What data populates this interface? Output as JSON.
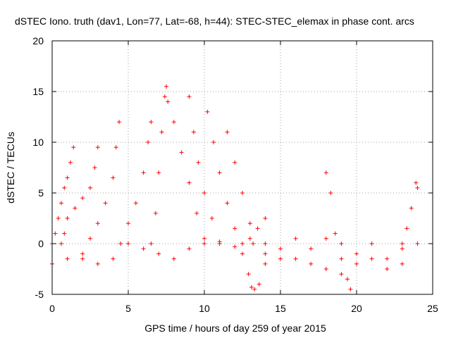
{
  "chart_data": {
    "type": "scatter",
    "title": "dSTEC Iono. truth (dav1, Lon=77, Lat=-68, h=44): STEC-STEC_elemax in phase cont. arcs",
    "xlabel": "GPS time / hours of day 259 of year 2015",
    "ylabel": "dSTEC  / TECUs",
    "xlim": [
      0,
      25
    ],
    "ylim": [
      -5,
      20
    ],
    "xticks": [
      0,
      5,
      10,
      15,
      20,
      25
    ],
    "yticks": [
      -5,
      0,
      5,
      10,
      15,
      20
    ],
    "grid": true,
    "marker": "+",
    "color": "#ff0000",
    "series": [
      {
        "x": [
          0.0,
          0.2,
          0.4,
          0.6,
          0.8,
          1.0,
          1.2,
          1.4
        ],
        "y": [
          0.0,
          1.0,
          2.5,
          4.0,
          5.5,
          6.5,
          8.0,
          9.5
        ]
      },
      {
        "x": [
          0.6,
          0.8,
          1.0,
          1.5,
          2.0,
          2.5,
          2.8,
          3.0
        ],
        "y": [
          0.0,
          1.0,
          2.5,
          3.5,
          4.5,
          5.5,
          7.5,
          9.5
        ]
      },
      {
        "x": [
          2.0,
          2.5,
          3.0,
          3.5,
          4.0,
          4.2,
          4.4
        ],
        "y": [
          -1.0,
          0.5,
          2.0,
          4.0,
          6.5,
          9.5,
          12.0
        ]
      },
      {
        "x": [
          4.5,
          5.0,
          5.5,
          6.0,
          6.3,
          6.5
        ],
        "y": [
          0.0,
          2.0,
          4.0,
          7.0,
          10.0,
          12.0
        ]
      },
      {
        "x": [
          6.5,
          6.8,
          7.0,
          7.2,
          7.4,
          7.5,
          7.6,
          8.0,
          8.5,
          9.0,
          9.5,
          10.0
        ],
        "y": [
          0.0,
          3.0,
          7.0,
          11.0,
          14.5,
          15.5,
          14.0,
          12.0,
          9.0,
          6.0,
          3.0,
          0.5
        ]
      },
      {
        "x": [
          9.0,
          9.3,
          9.6,
          10.0,
          10.5,
          11.0
        ],
        "y": [
          14.5,
          11.0,
          8.0,
          5.0,
          2.5,
          0.0
        ]
      },
      {
        "x": [
          10.2,
          10.6,
          11.0,
          11.5,
          12.0,
          12.5
        ],
        "y": [
          13.0,
          10.0,
          7.0,
          4.0,
          1.5,
          0.0
        ]
      },
      {
        "x": [
          11.5,
          12.0,
          12.5,
          13.0,
          13.2,
          13.5,
          14.0
        ],
        "y": [
          11.0,
          8.0,
          5.0,
          2.0,
          0.0,
          1.5,
          2.5
        ]
      },
      {
        "x": [
          12.5,
          12.9,
          13.1,
          13.3,
          13.6,
          14.0
        ],
        "y": [
          -1.0,
          -3.0,
          -4.3,
          -4.5,
          -4.0,
          -2.0
        ]
      },
      {
        "x": [
          0.0,
          1.0,
          2.0,
          3.0,
          4.0,
          5.0,
          6.0,
          7.0,
          8.0,
          9.0,
          10.0,
          11.0,
          12.0,
          13.0,
          14.0,
          15.0,
          16.0,
          17.0,
          18.0,
          19.0,
          20.0,
          21.0,
          22.0,
          23.0,
          24.0
        ],
        "y": [
          -2.0,
          -1.5,
          -1.5,
          -2.0,
          -1.5,
          0.0,
          -0.5,
          -1.0,
          -1.5,
          -0.5,
          0.0,
          0.2,
          -0.3,
          0.5,
          0.0,
          -0.5,
          0.5,
          -0.5,
          0.5,
          0.0,
          -1.0,
          0.0,
          -1.5,
          -0.5,
          0.0
        ]
      },
      {
        "x": [
          14.0,
          15.0,
          16.0,
          17.0,
          18.0,
          19.0,
          20.0,
          21.0,
          22.0,
          23.0
        ],
        "y": [
          -1.0,
          -1.5,
          -1.5,
          -2.0,
          -2.5,
          -3.0,
          -2.0,
          -1.5,
          -2.5,
          -2.0
        ]
      },
      {
        "x": [
          18.0,
          18.3,
          18.6,
          19.0,
          19.4,
          19.6
        ],
        "y": [
          7.0,
          5.0,
          1.0,
          -1.5,
          -3.5,
          -4.5
        ]
      },
      {
        "x": [
          23.0,
          23.3,
          23.6,
          23.9,
          24.0
        ],
        "y": [
          0.0,
          1.5,
          3.5,
          6.0,
          5.5
        ]
      }
    ]
  }
}
